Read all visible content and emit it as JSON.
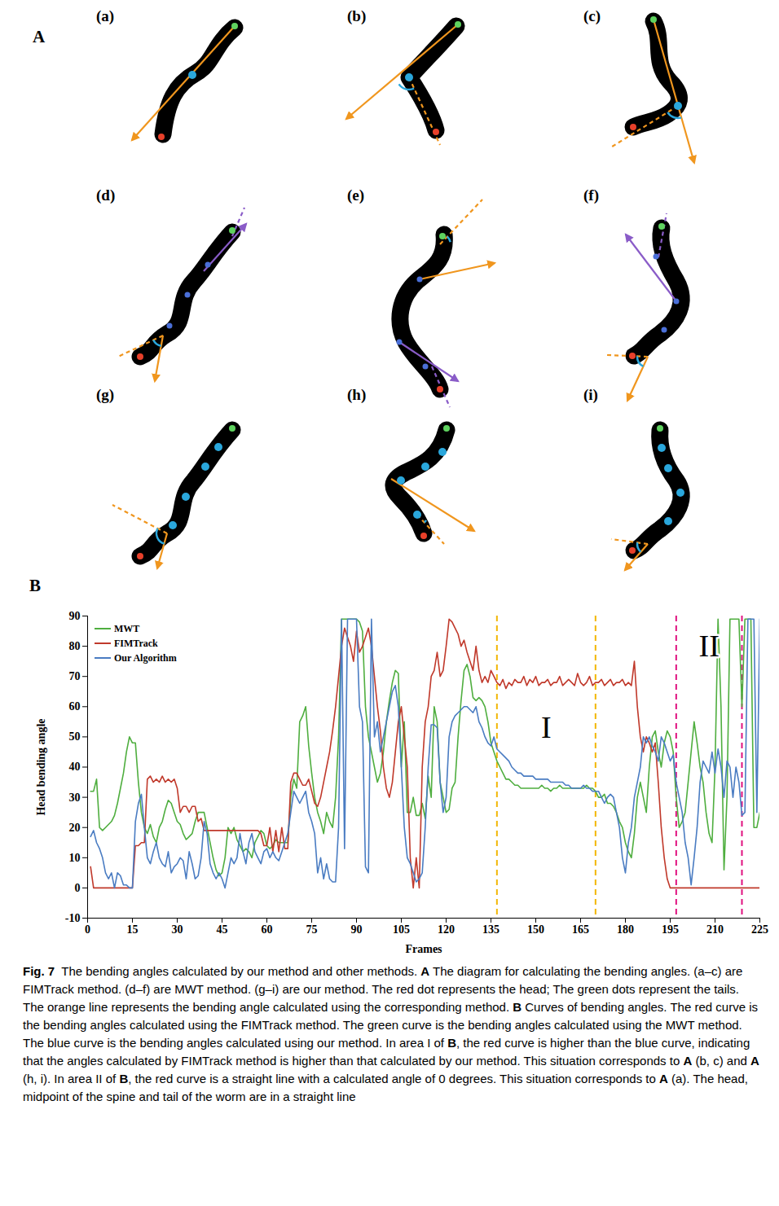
{
  "panel_a": {
    "letter": "A",
    "subpanels": [
      "(a)",
      "(b)",
      "(c)",
      "(d)",
      "(e)",
      "(f)",
      "(g)",
      "(h)",
      "(i)"
    ]
  },
  "chart_data": {
    "type": "line",
    "panel_label": "B",
    "xlabel": "Frames",
    "ylabel": "Head bending angle",
    "xlim": [
      0,
      225
    ],
    "xticks": [
      0,
      15,
      30,
      45,
      60,
      75,
      90,
      105,
      120,
      135,
      150,
      165,
      180,
      195,
      210,
      225
    ],
    "ylim": [
      -10,
      90
    ],
    "yticks": [
      -10,
      0,
      10,
      20,
      30,
      40,
      50,
      60,
      70,
      80,
      90
    ],
    "legend": "top-left",
    "x": [
      1,
      2,
      3,
      4,
      5,
      6,
      7,
      8,
      9,
      10,
      11,
      12,
      13,
      14,
      15,
      16,
      17,
      18,
      19,
      20,
      21,
      22,
      23,
      24,
      25,
      26,
      27,
      28,
      29,
      30,
      31,
      32,
      33,
      34,
      35,
      36,
      37,
      38,
      39,
      40,
      41,
      42,
      43,
      44,
      45,
      46,
      47,
      48,
      49,
      50,
      51,
      52,
      53,
      54,
      55,
      56,
      57,
      58,
      59,
      60,
      61,
      62,
      63,
      64,
      65,
      66,
      67,
      68,
      69,
      70,
      71,
      72,
      73,
      74,
      75,
      76,
      77,
      78,
      79,
      80,
      81,
      82,
      83,
      84,
      85,
      86,
      87,
      88,
      89,
      90,
      91,
      92,
      93,
      94,
      95,
      96,
      97,
      98,
      99,
      100,
      101,
      102,
      103,
      104,
      105,
      106,
      107,
      108,
      109,
      110,
      111,
      112,
      113,
      114,
      115,
      116,
      117,
      118,
      119,
      120,
      121,
      122,
      123,
      124,
      125,
      126,
      127,
      128,
      129,
      130,
      131,
      132,
      133,
      134,
      135,
      136,
      137,
      138,
      139,
      140,
      141,
      142,
      143,
      144,
      145,
      146,
      147,
      148,
      149,
      150,
      151,
      152,
      153,
      154,
      155,
      156,
      157,
      158,
      159,
      160,
      161,
      162,
      163,
      164,
      165,
      166,
      167,
      168,
      169,
      170,
      171,
      172,
      173,
      174,
      175,
      176,
      177,
      178,
      179,
      180,
      181,
      182,
      183,
      184,
      185,
      186,
      187,
      188,
      189,
      190,
      191,
      192,
      193,
      194,
      195,
      196,
      197,
      198,
      199,
      200,
      201,
      202,
      203,
      204,
      205,
      206,
      207,
      208,
      209,
      210,
      211,
      212,
      213,
      214,
      215,
      216,
      217,
      218,
      219,
      220,
      221,
      222,
      223,
      224,
      225
    ],
    "series": [
      {
        "name": "MWT",
        "color": "#4fae3f",
        "values": [
          32,
          32,
          36,
          20,
          19,
          20,
          21,
          22,
          24,
          28,
          33,
          38,
          45,
          50,
          48,
          48,
          35,
          25,
          20,
          18,
          21,
          17,
          15,
          20,
          22,
          26,
          29,
          28,
          25,
          22,
          21,
          18,
          16,
          17,
          18,
          22,
          25,
          25,
          25,
          20,
          15,
          10,
          6,
          4,
          5,
          10,
          20,
          18,
          20,
          16,
          14,
          12,
          13,
          12,
          10,
          15,
          17,
          19,
          18,
          14,
          13,
          14,
          16,
          15,
          15,
          15,
          15,
          30,
          36,
          33,
          55,
          57,
          60,
          47,
          38,
          30,
          25,
          22,
          18,
          25,
          22,
          20,
          30,
          50,
          89,
          89,
          89,
          89,
          89,
          89,
          88,
          85,
          60,
          50,
          45,
          40,
          35,
          38,
          45,
          55,
          62,
          68,
          72,
          71,
          40,
          55,
          25,
          25,
          30,
          24,
          24,
          28,
          23,
          37,
          30,
          60,
          55,
          35,
          30,
          25,
          26,
          33,
          35,
          50,
          62,
          72,
          74,
          70,
          63,
          62,
          63,
          62,
          60,
          55,
          48,
          45,
          42,
          40,
          38,
          36,
          36,
          35,
          34,
          34,
          33,
          33,
          33,
          33,
          33,
          33,
          33,
          34,
          33,
          33,
          32,
          33,
          33,
          34,
          33,
          33,
          33,
          33,
          33,
          33,
          33,
          33,
          34,
          33,
          33,
          32,
          30,
          30,
          31,
          28,
          28,
          27,
          25,
          22,
          20,
          15,
          12,
          10,
          18,
          30,
          35,
          30,
          25,
          40,
          50,
          52,
          45,
          40,
          48,
          52,
          50,
          45,
          30,
          20,
          22,
          25,
          35,
          45,
          55,
          48,
          40,
          35,
          25,
          18,
          15,
          40,
          89,
          60,
          6,
          30,
          89,
          89,
          89,
          89,
          60,
          89,
          89,
          89,
          20,
          20,
          25
        ]
      },
      {
        "name": "FIMTrack",
        "color": "#c0392b",
        "values": [
          7,
          0,
          0,
          0,
          0,
          0,
          0,
          0,
          0,
          0,
          0,
          0,
          0,
          0,
          0,
          14,
          14,
          15,
          15,
          36,
          37,
          35,
          36,
          35,
          37,
          35,
          36,
          35,
          36,
          33,
          25,
          27,
          27,
          25,
          27,
          27,
          22,
          23,
          19,
          19,
          19,
          19,
          19,
          19,
          19,
          19,
          19,
          19,
          19,
          19,
          19,
          19,
          19,
          19,
          19,
          19,
          19,
          18,
          14,
          14,
          20,
          12,
          19,
          12,
          20,
          13,
          13,
          35,
          38,
          38,
          36,
          34,
          34,
          36,
          32,
          28,
          27,
          30,
          35,
          40,
          45,
          52,
          60,
          70,
          80,
          86,
          83,
          80,
          75,
          85,
          78,
          80,
          83,
          86,
          80,
          70,
          60,
          52,
          40,
          33,
          30,
          35,
          45,
          55,
          60,
          50,
          40,
          10,
          0,
          10,
          0,
          40,
          55,
          60,
          70,
          72,
          78,
          70,
          72,
          80,
          89,
          88,
          86,
          84,
          80,
          82,
          78,
          75,
          72,
          80,
          72,
          68,
          70,
          68,
          72,
          70,
          68,
          67,
          69,
          66,
          68,
          67,
          69,
          68,
          68,
          70,
          67,
          69,
          68,
          70,
          67,
          68,
          68,
          69,
          67,
          68,
          68,
          70,
          67,
          68,
          69,
          68,
          67,
          71,
          68,
          67,
          68,
          70,
          67,
          68,
          68,
          69,
          67,
          68,
          69,
          67,
          68,
          68,
          69,
          67,
          68,
          67,
          75,
          60,
          50,
          45,
          50,
          48,
          45,
          48,
          35,
          20,
          10,
          3,
          0,
          0,
          0,
          0,
          0,
          0,
          0,
          0,
          0,
          0,
          0,
          0,
          0,
          0,
          0,
          0,
          0,
          0,
          0,
          0,
          0,
          0,
          0,
          0,
          0,
          0,
          0,
          0,
          0,
          0,
          0
        ]
      },
      {
        "name": "Our Algorithm",
        "color": "#4a7cc2",
        "values": [
          17,
          19,
          15,
          13,
          10,
          5,
          3,
          5,
          0,
          5,
          4,
          1,
          1,
          0,
          0,
          22,
          28,
          31,
          20,
          10,
          8,
          12,
          15,
          10,
          8,
          7,
          12,
          5,
          7,
          8,
          10,
          9,
          3,
          12,
          8,
          3,
          4,
          10,
          22,
          18,
          8,
          5,
          3,
          5,
          3,
          0,
          5,
          10,
          8,
          10,
          18,
          12,
          8,
          15,
          18,
          12,
          10,
          8,
          12,
          13,
          10,
          12,
          10,
          9,
          12,
          15,
          18,
          25,
          32,
          30,
          28,
          30,
          32,
          25,
          22,
          18,
          5,
          10,
          3,
          8,
          3,
          2,
          2,
          20,
          89,
          13,
          89,
          89,
          89,
          89,
          60,
          55,
          7,
          5,
          89,
          50,
          55,
          45,
          50,
          55,
          60,
          65,
          67,
          60,
          40,
          20,
          10,
          8,
          5,
          2,
          3,
          5,
          20,
          40,
          54,
          54,
          53,
          35,
          25,
          30,
          50,
          55,
          57,
          58,
          59,
          60,
          60,
          59,
          58,
          60,
          55,
          53,
          50,
          48,
          47,
          50,
          46,
          45,
          44,
          43,
          42,
          40,
          39,
          38,
          38,
          37,
          37,
          37,
          37,
          36,
          36,
          36,
          36,
          36,
          35,
          35,
          35,
          35,
          35,
          34,
          34,
          33,
          33,
          33,
          33,
          34,
          33,
          33,
          32,
          32,
          32,
          30,
          28,
          30,
          31,
          30,
          25,
          20,
          10,
          5,
          15,
          20,
          30,
          35,
          40,
          50,
          48,
          50,
          47,
          45,
          42,
          50,
          48,
          45,
          42,
          44,
          35,
          30,
          25,
          15,
          10,
          1,
          10,
          20,
          35,
          42,
          40,
          38,
          45,
          38,
          46,
          40,
          30,
          42,
          40,
          30,
          40,
          35,
          24,
          25,
          89,
          89,
          89,
          25,
          89
        ]
      }
    ],
    "regions": [
      {
        "text": "I",
        "x0": 137,
        "x1": 170,
        "y": 53,
        "color": "#f2b705"
      },
      {
        "text": "II",
        "x0": 197,
        "x1": 219,
        "y": 80,
        "color": "#e0117f"
      }
    ]
  },
  "caption": {
    "segments": [
      {
        "text": "Fig. 7",
        "bold": true
      },
      {
        "text": "  The bending angles calculated by our method and other methods. ",
        "bold": false
      },
      {
        "text": "A",
        "bold": true
      },
      {
        "text": " The diagram for calculating the bending angles. (a–c) are FIMTrack method. (d–f) are MWT method. (g–i) are our method. The red dot represents the head; The green dots represent the tails. The orange line represents the bending angle calculated using the corresponding method. ",
        "bold": false
      },
      {
        "text": "B",
        "bold": true
      },
      {
        "text": " Curves of bending angles. The red curve is the bending angles calculated using the FIMTrack method. The green curve is the bending angles calculated using the MWT method. The blue curve is the bending angles calculated using our method. In area I of ",
        "bold": false
      },
      {
        "text": "B",
        "bold": true
      },
      {
        "text": ", the red curve is higher than the blue curve, indicating that the angles calculated by FIMTrack method is higher than that calculated by our method. This situation corresponds to ",
        "bold": false
      },
      {
        "text": "A",
        "bold": true
      },
      {
        "text": " (b, c) and ",
        "bold": false
      },
      {
        "text": "A",
        "bold": true
      },
      {
        "text": " (h, i). In area II of ",
        "bold": false
      },
      {
        "text": "B",
        "bold": true
      },
      {
        "text": ", the red curve is a straight line with a calculated angle of 0 degrees. This situation corresponds to ",
        "bold": false
      },
      {
        "text": "A",
        "bold": true
      },
      {
        "text": " (a). The head, midpoint of the spine and tail of the worm are in a straight line",
        "bold": false
      }
    ]
  }
}
